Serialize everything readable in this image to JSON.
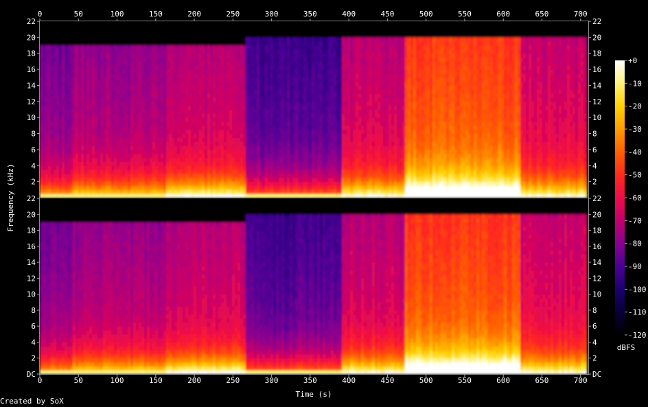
{
  "chart_data": {
    "type": "heatmap",
    "xlabel": "Time (s)",
    "ylabel": "Frequency (kHz)",
    "xlim": [
      0,
      710
    ],
    "ylim": [
      0,
      22
    ],
    "x_ticks": [
      0,
      50,
      100,
      150,
      200,
      250,
      300,
      350,
      400,
      450,
      500,
      550,
      600,
      650,
      700
    ],
    "y_tick_labels_top": [
      "22",
      "20",
      "18",
      "16",
      "14",
      "12",
      "10",
      "8",
      "6",
      "4",
      "2"
    ],
    "y_tick_labels_bottom": [
      "22",
      "20",
      "18",
      "16",
      "14",
      "12",
      "10",
      "8",
      "6",
      "4",
      "2",
      "DC"
    ],
    "channels": 2,
    "colorbar": {
      "label": "dBFS",
      "range": [
        -120,
        0
      ],
      "ticks": [
        "+0",
        "-10",
        "-20",
        "-30",
        "-40",
        "-50",
        "-60",
        "-70",
        "-80",
        "-90",
        "-100",
        "-110",
        "-120"
      ],
      "colors": [
        "#ffffff",
        "#fff27a",
        "#ffd000",
        "#ff9c00",
        "#ff6000",
        "#ff2a1e",
        "#f00c46",
        "#c2006e",
        "#8a0090",
        "#4c0096",
        "#1c0070",
        "#070038",
        "#000000"
      ]
    },
    "segments": [
      {
        "t_start": 0,
        "t_end": 40,
        "top_khz": 19,
        "level": 0.38,
        "low_energy": 0.75
      },
      {
        "t_start": 40,
        "t_end": 160,
        "top_khz": 19,
        "level": 0.42,
        "low_energy": 0.85
      },
      {
        "t_start": 160,
        "t_end": 265,
        "top_khz": 19,
        "level": 0.47,
        "low_energy": 0.95
      },
      {
        "t_start": 265,
        "t_end": 290,
        "top_khz": 20,
        "level": 0.3,
        "low_energy": 0.7
      },
      {
        "t_start": 290,
        "t_end": 390,
        "top_khz": 20,
        "level": 0.3,
        "low_energy": 0.75
      },
      {
        "t_start": 390,
        "t_end": 470,
        "top_khz": 20,
        "level": 0.48,
        "low_energy": 0.9
      },
      {
        "t_start": 470,
        "t_end": 620,
        "top_khz": 20,
        "level": 0.68,
        "low_energy": 1.0
      },
      {
        "t_start": 620,
        "t_end": 705,
        "top_khz": 20,
        "level": 0.5,
        "low_energy": 0.85
      }
    ]
  },
  "footer": {
    "credit": "Created by SoX"
  }
}
